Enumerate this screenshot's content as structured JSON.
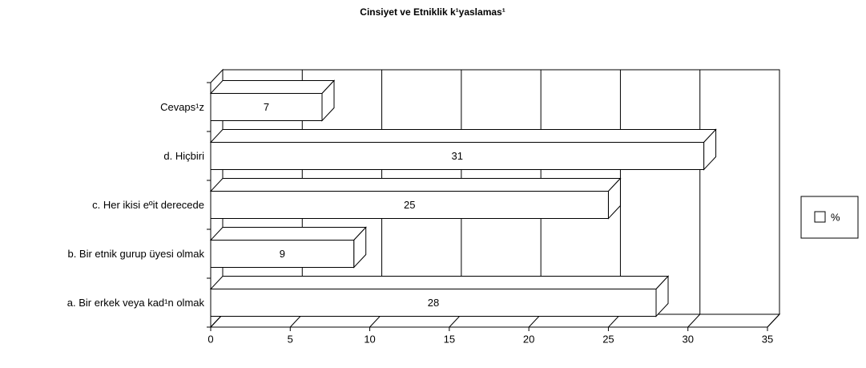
{
  "chart_data": {
    "type": "bar3d_horizontal",
    "title": "Cinsiyet ve Etniklik k¹yaslamas¹",
    "categories": [
      "a. Bir erkek veya kad¹n olmak",
      "b. Bir etnik gurup üyesi olmak",
      "c. Her ikisi eºit derecede",
      "d. Hiçbiri",
      "Cevaps¹z"
    ],
    "series": [
      {
        "name": "%",
        "color": "#ffffff",
        "values": [
          28,
          9,
          25,
          31,
          7
        ]
      }
    ],
    "xlim": [
      0,
      35
    ],
    "xticks": [
      0,
      5,
      10,
      15,
      20,
      25,
      30,
      35
    ],
    "grid": true,
    "legend": "right"
  }
}
